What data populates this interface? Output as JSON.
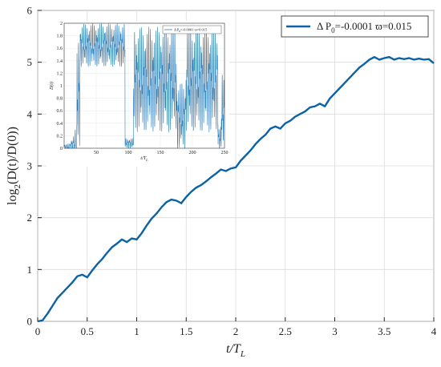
{
  "chart_data": [
    {
      "type": "line",
      "xlabel_main": "t/T",
      "xlabel_sub": "L",
      "ylabel_pre": "log",
      "ylabel_sub": "2",
      "ylabel_post": "(D(t)/D(0))",
      "xlim": [
        0,
        4
      ],
      "ylim": [
        0,
        6
      ],
      "xticks": [
        "0",
        "0.5",
        "1",
        "1.5",
        "2",
        "2.5",
        "3",
        "3.5",
        "4"
      ],
      "yticks": [
        "0",
        "1",
        "2",
        "3",
        "4",
        "5",
        "6"
      ],
      "grid": true,
      "legend_position": "top-right",
      "legend": {
        "pre": "Δ P",
        "sub": "0",
        "post": "=-0.0001  ϖ=0.015"
      },
      "color": "#0b62a4",
      "series": [
        {
          "x": [
            0,
            0.05,
            0.08,
            0.1,
            0.15,
            0.2,
            0.25,
            0.3,
            0.35,
            0.4,
            0.45,
            0.5,
            0.55,
            0.6,
            0.65,
            0.7,
            0.75,
            0.8,
            0.85,
            0.9,
            0.95,
            1.0,
            1.05,
            1.1,
            1.15,
            1.2,
            1.25,
            1.3,
            1.35,
            1.4,
            1.45,
            1.5,
            1.55,
            1.6,
            1.65,
            1.7,
            1.75,
            1.8,
            1.85,
            1.9,
            1.95,
            2.0,
            2.05,
            2.1,
            2.15,
            2.2,
            2.25,
            2.3,
            2.35,
            2.4,
            2.45,
            2.5,
            2.55,
            2.6,
            2.65,
            2.7,
            2.75,
            2.8,
            2.85,
            2.9,
            2.95,
            3.0,
            3.05,
            3.1,
            3.15,
            3.2,
            3.25,
            3.3,
            3.35,
            3.4,
            3.45,
            3.5,
            3.55,
            3.6,
            3.65,
            3.7,
            3.75,
            3.8,
            3.85,
            3.9,
            3.95,
            4.0
          ],
          "y": [
            0,
            0.02,
            0.1,
            0.15,
            0.3,
            0.45,
            0.55,
            0.65,
            0.75,
            0.87,
            0.9,
            0.85,
            0.98,
            1.1,
            1.2,
            1.32,
            1.43,
            1.5,
            1.58,
            1.53,
            1.6,
            1.58,
            1.7,
            1.85,
            1.98,
            2.08,
            2.2,
            2.3,
            2.35,
            2.33,
            2.28,
            2.4,
            2.5,
            2.58,
            2.63,
            2.7,
            2.78,
            2.85,
            2.93,
            2.9,
            2.95,
            2.97,
            3.1,
            3.2,
            3.3,
            3.42,
            3.52,
            3.6,
            3.72,
            3.76,
            3.72,
            3.82,
            3.87,
            3.95,
            4.0,
            4.05,
            4.13,
            4.15,
            4.2,
            4.15,
            4.3,
            4.4,
            4.5,
            4.6,
            4.7,
            4.8,
            4.9,
            4.97,
            5.05,
            5.1,
            5.05,
            5.08,
            5.1,
            5.05,
            5.08,
            5.06,
            5.08,
            5.05,
            5.07,
            5.05,
            5.06,
            4.98
          ]
        }
      ]
    },
    {
      "type": "line",
      "xlabel_main": "t/T",
      "xlabel_sub": "L",
      "ylabel": "D(t)",
      "xlim": [
        0,
        250
      ],
      "ylim": [
        0,
        2
      ],
      "xticks": [
        "50",
        "100",
        "150",
        "200",
        "250"
      ],
      "yticks": [
        "0",
        "0.2",
        "0.4",
        "0.6",
        "0.8",
        "1",
        "1.2",
        "1.4",
        "1.6",
        "1.8",
        "2"
      ],
      "grid": true,
      "legend_position": "top-right",
      "legend": {
        "pre": "Δ P",
        "sub": "0",
        "post": "=-0.0001  ϖ=0.015"
      },
      "color": "#2f7fb8"
    }
  ]
}
